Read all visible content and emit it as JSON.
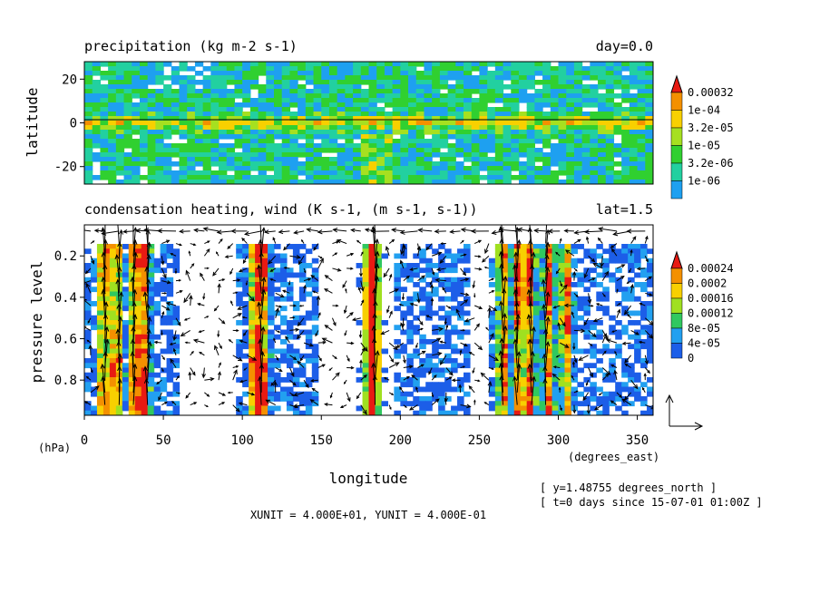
{
  "chart_data": [
    {
      "type": "heatmap",
      "title": "precipitation (kg m-2 s-1)",
      "annotation": "day=0.0",
      "ylabel": "latitude",
      "xlim": [
        0,
        360
      ],
      "ylim": [
        -28,
        28
      ],
      "yticks": [
        -20,
        0,
        20
      ],
      "colorbar": {
        "labels": [
          "0.00032",
          "1e-04",
          "3.2e-05",
          "1e-05",
          "3.2e-06",
          "1e-06"
        ],
        "colors": [
          "#1ea0f0",
          "#22d0a0",
          "#30d030",
          "#a6e020",
          "#f8d000",
          "#f49000",
          "#e81a12"
        ]
      },
      "reference_line_y": 0
    },
    {
      "type": "heatmap",
      "title": "condensation heating, wind (K s-1, (m s-1, s-1))",
      "annotation": "lat=1.5",
      "xlabel": "longitude",
      "x_unit": "(degrees_east)",
      "ylabel": "pressure level",
      "y_unit": "(hPa)",
      "xlim": [
        0,
        360
      ],
      "ylim": [
        0.97,
        0.05
      ],
      "xticks": [
        0,
        50,
        100,
        150,
        200,
        250,
        300,
        350
      ],
      "yticks": [
        0.2,
        0.4,
        0.6,
        0.8
      ],
      "colorbar": {
        "labels": [
          "0.00024",
          "0.0002",
          "0.00016",
          "0.00012",
          "8e-05",
          "4e-05",
          "0"
        ],
        "colors": [
          "#1c5ee8",
          "#22a0f0",
          "#30c860",
          "#a0e020",
          "#f8d000",
          "#f49000",
          "#e81a12"
        ]
      },
      "heating_columns": [
        {
          "lon": 12,
          "level": 0.25
        },
        {
          "lon": 20,
          "level": 0.12
        },
        {
          "lon": 32,
          "level": 0.06
        },
        {
          "lon": 38,
          "level": 0.18
        },
        {
          "lon": 108,
          "level": 0.45
        },
        {
          "lon": 113,
          "level": 0.65
        },
        {
          "lon": 180,
          "level": 0.0
        },
        {
          "lon": 184,
          "level": 0.3
        },
        {
          "lon": 265,
          "level": 0.35
        },
        {
          "lon": 275,
          "level": 0.1
        },
        {
          "lon": 282,
          "level": 0.2
        },
        {
          "lon": 294,
          "level": 0.4
        },
        {
          "lon": 305,
          "level": 0.55
        }
      ]
    }
  ],
  "notes": {
    "vector_units": "XUNIT = 4.000E+01, YUNIT = 4.000E-01",
    "y_position": "[ y=1.48755 degrees_north ]",
    "time": "[ t=0 days since 15-07-01 01:00Z ]"
  }
}
